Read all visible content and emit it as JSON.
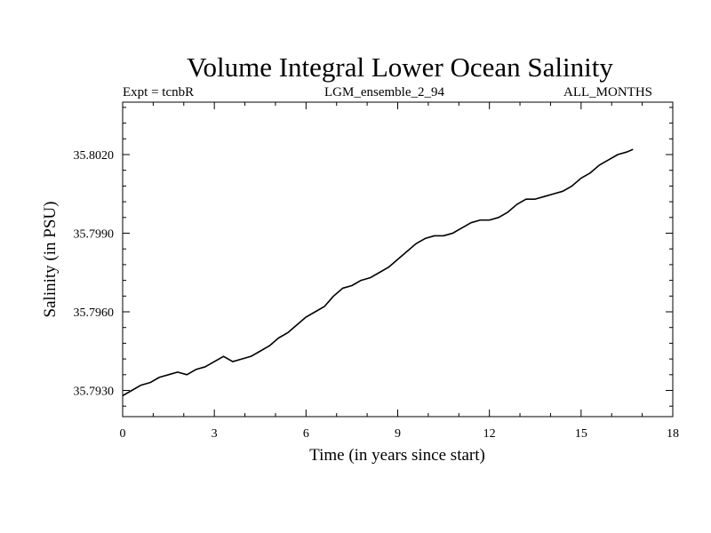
{
  "chart_data": {
    "type": "line",
    "title": "Volume Integral Lower Ocean Salinity",
    "subtitle_left": "Expt = tcnbR",
    "subtitle_center": "LGM_ensemble_2_94",
    "subtitle_right": "ALL_MONTHS",
    "xlabel": "Time (in years since start)",
    "ylabel": "Salinity (in PSU)",
    "xlim": [
      0,
      18
    ],
    "ylim": [
      35.792,
      35.804
    ],
    "x_ticks": [
      0,
      3,
      6,
      9,
      12,
      15,
      18
    ],
    "x_tick_labels": [
      "0",
      "3",
      "6",
      "9",
      "12",
      "15",
      "18"
    ],
    "y_ticks": [
      35.793,
      35.796,
      35.799,
      35.802
    ],
    "y_tick_labels": [
      "35.7930",
      "35.7960",
      "35.7990",
      "35.8020"
    ],
    "grid": false,
    "series": [
      {
        "name": "Salinity",
        "color": "#000000",
        "x": [
          0,
          0.3,
          0.6,
          0.9,
          1.2,
          1.5,
          1.8,
          2.1,
          2.4,
          2.7,
          3.0,
          3.3,
          3.6,
          3.9,
          4.2,
          4.5,
          4.8,
          5.1,
          5.4,
          5.7,
          6.0,
          6.3,
          6.6,
          6.9,
          7.2,
          7.5,
          7.8,
          8.1,
          8.4,
          8.7,
          9.0,
          9.3,
          9.6,
          9.9,
          10.2,
          10.5,
          10.8,
          11.1,
          11.4,
          11.7,
          12.0,
          12.3,
          12.6,
          12.9,
          13.2,
          13.5,
          13.8,
          14.1,
          14.4,
          14.7,
          15.0,
          15.3,
          15.6,
          15.9,
          16.2,
          16.5,
          16.7
        ],
        "values": [
          35.7928,
          35.793,
          35.7932,
          35.7933,
          35.7935,
          35.7936,
          35.7937,
          35.7936,
          35.7938,
          35.7939,
          35.7941,
          35.7943,
          35.7941,
          35.7942,
          35.7943,
          35.7945,
          35.7947,
          35.795,
          35.7952,
          35.7955,
          35.7958,
          35.796,
          35.7962,
          35.7966,
          35.7969,
          35.797,
          35.7972,
          35.7973,
          35.7975,
          35.7977,
          35.798,
          35.7983,
          35.7986,
          35.7988,
          35.7989,
          35.7989,
          35.799,
          35.7992,
          35.7994,
          35.7995,
          35.7995,
          35.7996,
          35.7998,
          35.8001,
          35.8003,
          35.8003,
          35.8004,
          35.8005,
          35.8006,
          35.8008,
          35.8011,
          35.8013,
          35.8016,
          35.8018,
          35.802,
          35.8021,
          35.8022
        ]
      }
    ]
  }
}
